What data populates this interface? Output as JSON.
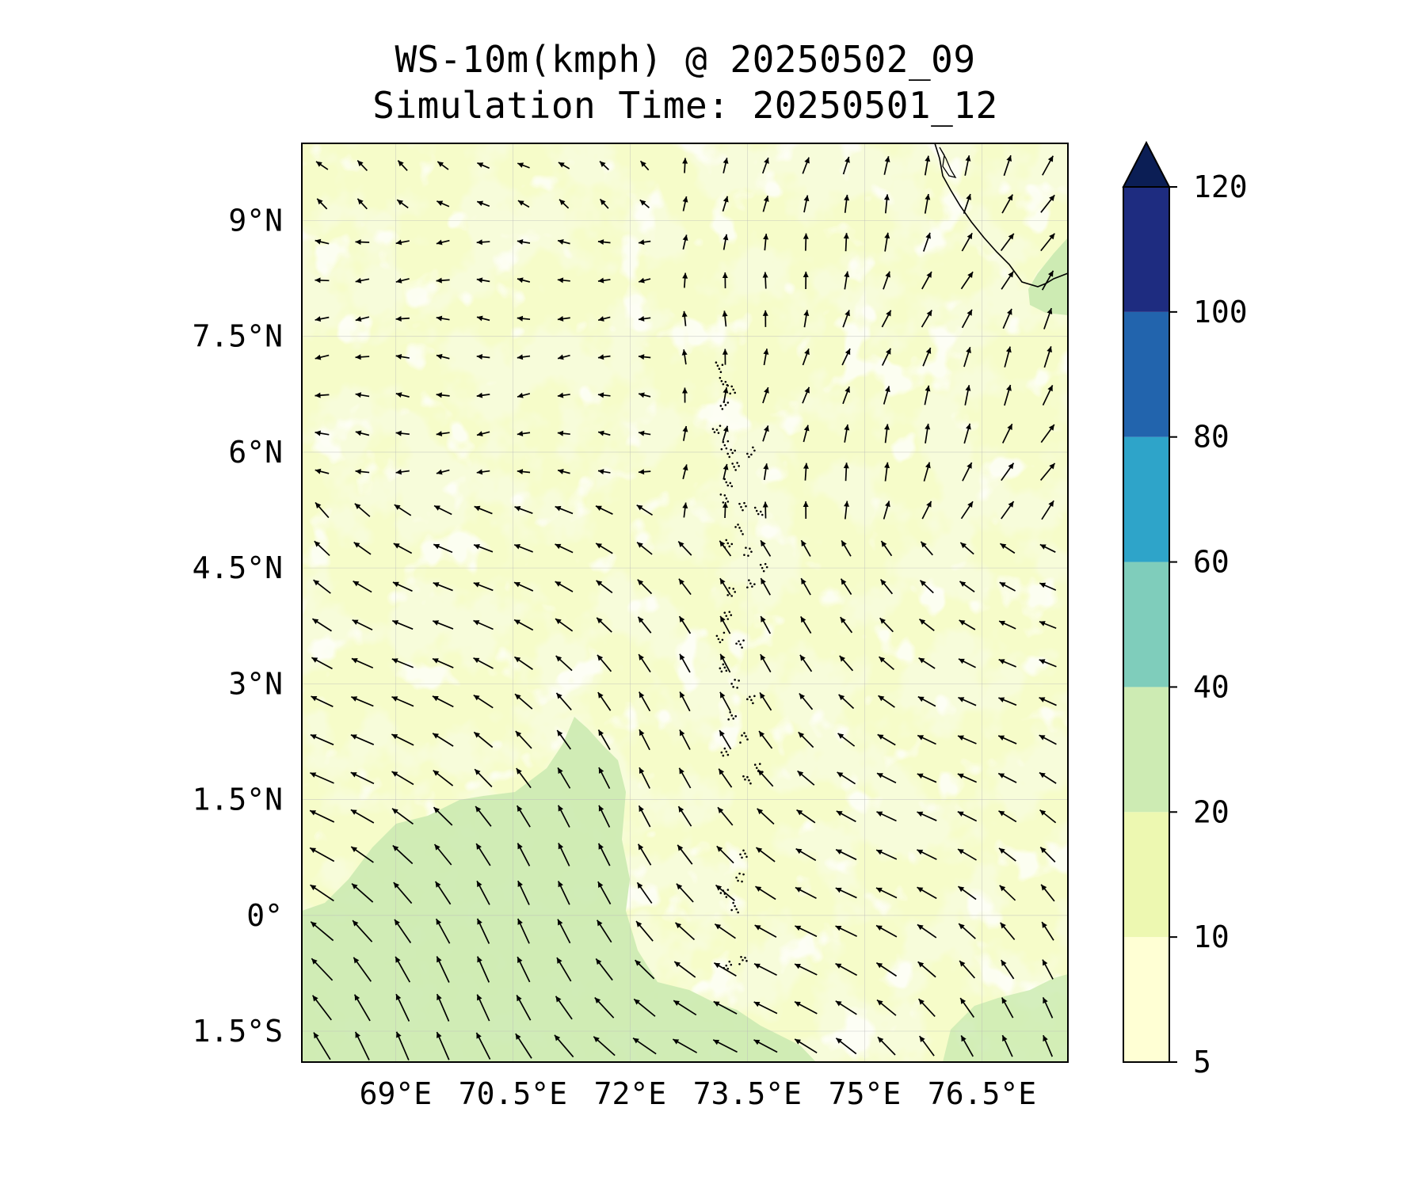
{
  "title": {
    "line1": "WS-10m(kmph) @ 20250502_09",
    "line2": "Simulation Time: 20250501_12"
  },
  "map": {
    "lon_range": [
      67.8,
      77.6
    ],
    "lat_range": [
      -1.9,
      10.0
    ],
    "lon_ticks": [
      {
        "value": 69,
        "label": "69°E"
      },
      {
        "value": 70.5,
        "label": "70.5°E"
      },
      {
        "value": 72,
        "label": "72°E"
      },
      {
        "value": 73.5,
        "label": "73.5°E"
      },
      {
        "value": 75,
        "label": "75°E"
      },
      {
        "value": 76.5,
        "label": "76.5°E"
      }
    ],
    "lat_ticks": [
      {
        "value": 9,
        "label": "9°N"
      },
      {
        "value": 7.5,
        "label": "7.5°N"
      },
      {
        "value": 6,
        "label": "6°N"
      },
      {
        "value": 4.5,
        "label": "4.5°N"
      },
      {
        "value": 3,
        "label": "3°N"
      },
      {
        "value": 1.5,
        "label": "1.5°N"
      },
      {
        "value": 0,
        "label": "0°"
      },
      {
        "value": -1.5,
        "label": "1.5°S"
      }
    ],
    "gridlines": true,
    "coastline_feature": "southern tip of India (top-right) and Maldives atolls (dotted, center)"
  },
  "colorbar": {
    "levels": [
      5,
      10,
      20,
      40,
      60,
      80,
      100,
      120
    ],
    "labels": [
      "5",
      "10",
      "20",
      "40",
      "60",
      "80",
      "100",
      "120"
    ],
    "colors": [
      "#ffffd4",
      "#edf8b1",
      "#cdebb3",
      "#7fcdbb",
      "#2ea4c9",
      "#2264ad",
      "#1e2c80",
      "#0b1e55"
    ],
    "extend": "max"
  }
}
